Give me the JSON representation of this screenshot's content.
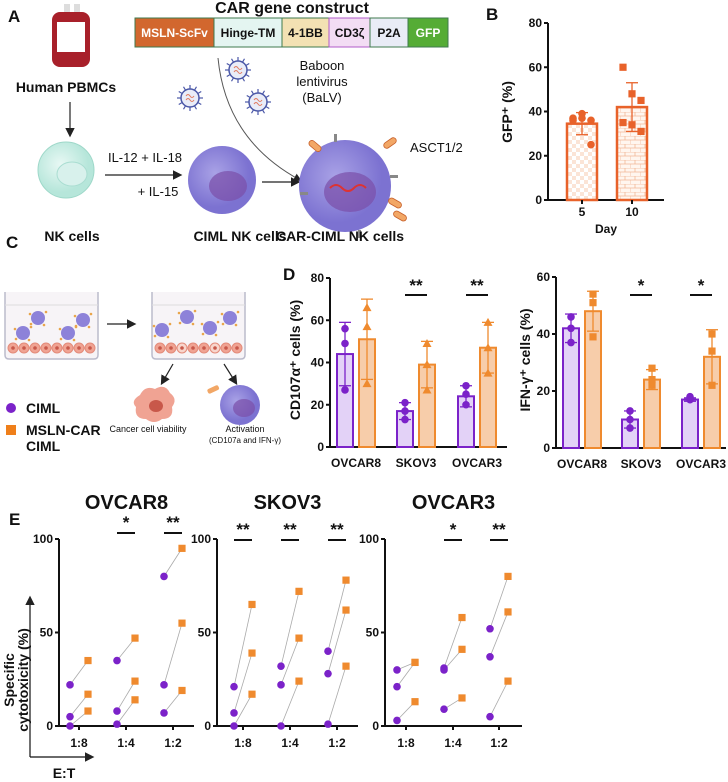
{
  "panel_labels": {
    "a": "A",
    "b": "B",
    "c": "C",
    "d": "D",
    "e": "E"
  },
  "colors": {
    "ciml": "#7B22C9",
    "ciml_fill": "#E3D2F7",
    "car": "#EF8A2E",
    "car_fill": "#F7CDAA",
    "gfp_bar": "#E8622A",
    "axis": "#111111"
  },
  "panel_a": {
    "construct_title": "CAR gene construct",
    "segments": [
      {
        "label": "MSLN-ScFv",
        "color": "#D2672E",
        "text_color": "#FFFFFF"
      },
      {
        "label": "Hinge-TM",
        "color": "#E4F5F1",
        "text_color": "#111111"
      },
      {
        "label": "4-1BB",
        "color": "#F3E1B3",
        "text_color": "#111111"
      },
      {
        "label": "CD3ζ",
        "color": "#F3DDF4",
        "text_color": "#111111"
      },
      {
        "label": "P2A",
        "color": "#E9ECF6",
        "text_color": "#111111"
      },
      {
        "label": "GFP",
        "color": "#55AC35",
        "text_color": "#FFFFFF"
      }
    ],
    "pbmc_label": "Human PBMCs",
    "virus_label": [
      "Baboon",
      "lentivirus",
      "(BaLV)"
    ],
    "cytokines_1": "IL-12 + IL-18",
    "cytokines_2": "+ IL-15",
    "nk_label": "NK cells",
    "ciml_label": "CIML NK cells",
    "car_label": "CAR-CIML NK cells",
    "receptor_label": "ASCT1/2"
  },
  "panel_c": {
    "legend": [
      {
        "label": "CIML",
        "marker": "circle"
      },
      {
        "label": "MSLN-CAR",
        "label2": "CIML",
        "marker": "square"
      }
    ],
    "viability_label": "Cancer cell viability",
    "activation_label": "Activation",
    "activation_sub": "(CD107a and IFN-γ)"
  },
  "panel_e": {
    "y_label_1": "Specific",
    "y_label_2": "cytotoxicity (%)",
    "x_label": "E:T"
  },
  "chart_data": [
    {
      "id": "B",
      "type": "bar",
      "categories": [
        "5",
        "10"
      ],
      "xlabel": "Day",
      "ylabel": "GFP⁺ (%)",
      "ylim": [
        0,
        80
      ],
      "yticks": [
        0,
        20,
        40,
        60,
        80
      ],
      "means": [
        34.5,
        42
      ],
      "sd": [
        5,
        11
      ],
      "points": [
        [
          37,
          39,
          36,
          36,
          37,
          25
        ],
        [
          60,
          48,
          45,
          35,
          34,
          31
        ]
      ],
      "fill_patterns": [
        "checkerboard",
        "brick"
      ]
    },
    {
      "id": "D-CD107a",
      "type": "bar",
      "categories": [
        "OVCAR8",
        "SKOV3",
        "OVCAR3"
      ],
      "ylabel": "CD107α⁺ cells (%)",
      "ylim": [
        0,
        80
      ],
      "yticks": [
        0,
        20,
        40,
        60,
        80
      ],
      "series": [
        {
          "name": "CIML",
          "means": [
            44,
            17,
            24
          ],
          "sd": [
            15,
            4,
            5
          ],
          "points": [
            [
              56,
              49,
              27
            ],
            [
              21,
              17,
              13
            ],
            [
              29,
              25,
              20
            ]
          ],
          "marker": "circle"
        },
        {
          "name": "MSLN-CAR CIML",
          "means": [
            51,
            39,
            47
          ],
          "sd": [
            19,
            11,
            12
          ],
          "points": [
            [
              66,
              57,
              30
            ],
            [
              49,
              39,
              27
            ],
            [
              59,
              47,
              35
            ]
          ],
          "marker": "triangle"
        }
      ],
      "significance": [
        "",
        "**",
        "**"
      ]
    },
    {
      "id": "D-IFNg",
      "type": "bar",
      "categories": [
        "OVCAR8",
        "SKOV3",
        "OVCAR3"
      ],
      "ylabel": "IFN-γ⁺ cells (%)",
      "ylim": [
        0,
        60
      ],
      "yticks": [
        0,
        20,
        40,
        60
      ],
      "series": [
        {
          "name": "CIML",
          "means": [
            42,
            10,
            17
          ],
          "sd": [
            5,
            3,
            0.6
          ],
          "points": [
            [
              46,
              42,
              37
            ],
            [
              13,
              10,
              7
            ],
            [
              18,
              17,
              17
            ]
          ],
          "marker": "circle"
        },
        {
          "name": "MSLN-CAR CIML",
          "means": [
            48,
            24,
            32
          ],
          "sd": [
            7,
            3.5,
            9.5
          ],
          "points": [
            [
              54,
              51,
              39
            ],
            [
              28,
              24,
              22
            ],
            [
              40,
              34,
              22
            ]
          ],
          "marker": "square"
        }
      ],
      "significance": [
        "",
        "*",
        "*"
      ]
    },
    {
      "id": "E-OVCAR8",
      "type": "scatter",
      "title": "OVCAR8",
      "categories": [
        "1:8",
        "1:4",
        "1:2"
      ],
      "ylim": [
        0,
        100
      ],
      "yticks": [
        0,
        50,
        100
      ],
      "ciml": [
        [
          22,
          5,
          0
        ],
        [
          35,
          8,
          1
        ],
        [
          80,
          22,
          7
        ]
      ],
      "car": [
        [
          35,
          17,
          8
        ],
        [
          47,
          24,
          14
        ],
        [
          95,
          55,
          19
        ]
      ],
      "significance": [
        "",
        "*",
        "**"
      ]
    },
    {
      "id": "E-SKOV3",
      "type": "scatter",
      "title": "SKOV3",
      "categories": [
        "1:8",
        "1:4",
        "1:2"
      ],
      "ylim": [
        0,
        100
      ],
      "yticks": [
        0,
        50,
        100
      ],
      "ciml": [
        [
          21,
          7,
          0
        ],
        [
          32,
          22,
          0
        ],
        [
          40,
          28,
          1
        ]
      ],
      "car": [
        [
          65,
          39,
          17
        ],
        [
          72,
          47,
          24
        ],
        [
          78,
          62,
          32
        ]
      ],
      "significance": [
        "**",
        "**",
        "**"
      ]
    },
    {
      "id": "E-OVCAR3",
      "type": "scatter",
      "title": "OVCAR3",
      "categories": [
        "1:8",
        "1:4",
        "1:2"
      ],
      "ylim": [
        0,
        100
      ],
      "yticks": [
        0,
        50,
        100
      ],
      "ciml": [
        [
          30,
          21,
          3
        ],
        [
          31,
          30,
          9
        ],
        [
          52,
          37,
          5
        ]
      ],
      "car": [
        [
          34,
          34,
          13
        ],
        [
          58,
          41,
          15
        ],
        [
          80,
          61,
          24
        ]
      ],
      "significance": [
        "",
        "*",
        "**"
      ]
    }
  ]
}
